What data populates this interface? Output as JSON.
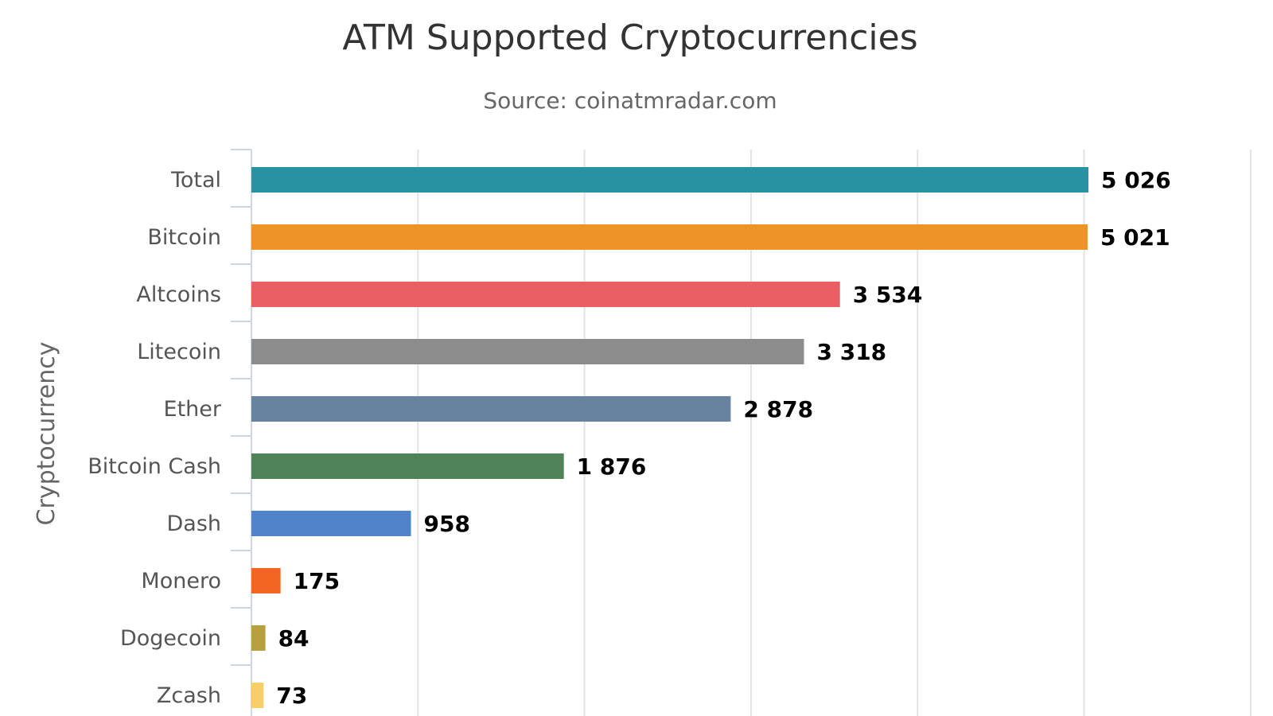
{
  "chart_data": {
    "type": "bar",
    "orientation": "horizontal",
    "title": "ATM Supported Cryptocurrencies",
    "subtitle": "Source: coinatmradar.com",
    "ylabel": "Cryptocurrency",
    "xlabel": "",
    "categories": [
      "Total",
      "Bitcoin",
      "Altcoins",
      "Litecoin",
      "Ether",
      "Bitcoin Cash",
      "Dash",
      "Monero",
      "Dogecoin",
      "Zcash"
    ],
    "values": [
      5026,
      5021,
      3534,
      3318,
      2878,
      1876,
      958,
      175,
      84,
      73
    ],
    "value_labels": [
      "5 026",
      "5 021",
      "3 534",
      "3 318",
      "2 878",
      "1 876",
      "958",
      "175",
      "84",
      "73"
    ],
    "colors": [
      "#2892A2",
      "#EE9327",
      "#E95F63",
      "#8C8C8C",
      "#6883A0",
      "#508258",
      "#5083C9",
      "#F26522",
      "#B8A040",
      "#F7CE68"
    ],
    "xlim": [
      0,
      5000
    ],
    "x_grid_ticks": [
      1000,
      2000,
      3000,
      4000,
      5000,
      6000
    ],
    "grid": true,
    "legend": "none"
  }
}
